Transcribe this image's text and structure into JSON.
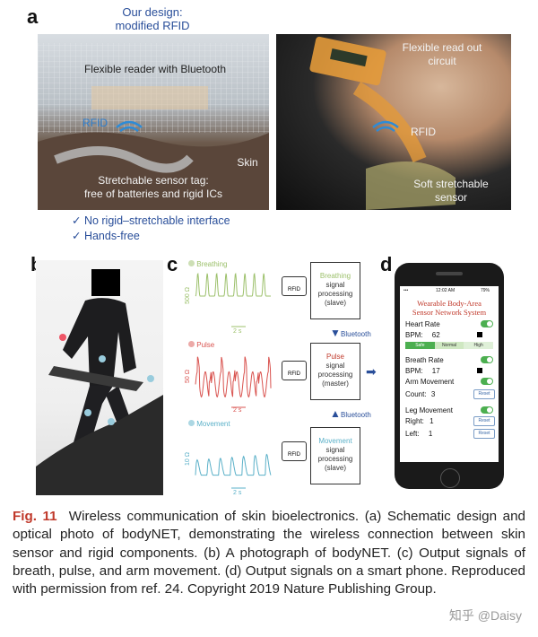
{
  "panels": {
    "a": {
      "letter": "a",
      "design_title": "Our design:",
      "design_subtitle": "modified RFID",
      "reader_label": "Flexible reader with Bluetooth",
      "rfid_label": "RFID",
      "skin_label": "Skin",
      "tag_line1": "Stretchable sensor tag:",
      "tag_line2": "free of batteries and rigid ICs",
      "check1": "✓ No rigid–stretchable interface",
      "check2": "✓ Hands-free",
      "photo_readout_line1": "Flexible read out",
      "photo_readout_line2": "circuit",
      "photo_rfid": "RFID",
      "photo_sensor_line1": "Soft stretchable",
      "photo_sensor_line2": "sensor"
    },
    "b": {
      "letter": "b"
    },
    "c": {
      "letter": "c",
      "signals": [
        {
          "name": "Breathing",
          "scale": "500 Ω",
          "time": "2 s",
          "color": "#9cc06b",
          "box_title": "Breathing",
          "box_line1": "signal",
          "box_line2": "processing",
          "box_role": "(slave)"
        },
        {
          "name": "Pulse",
          "scale": "50 Ω",
          "time": "2 s",
          "color": "#d9534f",
          "box_title": "Pulse",
          "box_line1": "signal",
          "box_line2": "processing",
          "box_role": "(master)"
        },
        {
          "name": "Movement",
          "scale": "10 Ω",
          "time": "2 s",
          "color": "#5ab0c8",
          "box_title": "Movement",
          "box_line1": "signal",
          "box_line2": "processing",
          "box_role": "(slave)"
        }
      ],
      "rfid_chip": "RFID",
      "bluetooth1": "Bluetooth",
      "bluetooth2": "Bluetooth"
    },
    "d": {
      "letter": "d",
      "time": "12:02 AM",
      "battery": "79%",
      "app_title_line1": "Wearable Body-Area",
      "app_title_line2": "Sensor Network System",
      "heart_rate_label": "Heart Rate",
      "bpm_label": "BPM:",
      "bpm_value": "62",
      "scale_safe": "Safe",
      "scale_normal": "Normal",
      "scale_high": "High",
      "breath_rate_label": "Breath Rate",
      "breath_bpm_label": "BPM:",
      "breath_bpm_value": "17",
      "arm_label": "Arm Movement",
      "count_label": "Count:",
      "count_value": "3",
      "leg_label": "Leg Movement",
      "right_label": "Right:",
      "right_value": "1",
      "left_label": "Left:",
      "left_value": "1",
      "reset": "Reset"
    }
  },
  "caption": {
    "fig": "Fig. 11",
    "text": "Wireless communication of skin bioelectronics. (a) Schematic design and optical photo of bodyNET, demonstrating the wireless connection between skin sensor and rigid components. (b) A photograph of bodyNET. (c) Output signals of breath, pulse, and arm movement. (d) Output signals on a smart phone. Reproduced with permission from ref. 24. Copyright 2019 Nature Publishing Group."
  },
  "watermark": "知乎 @Daisy"
}
